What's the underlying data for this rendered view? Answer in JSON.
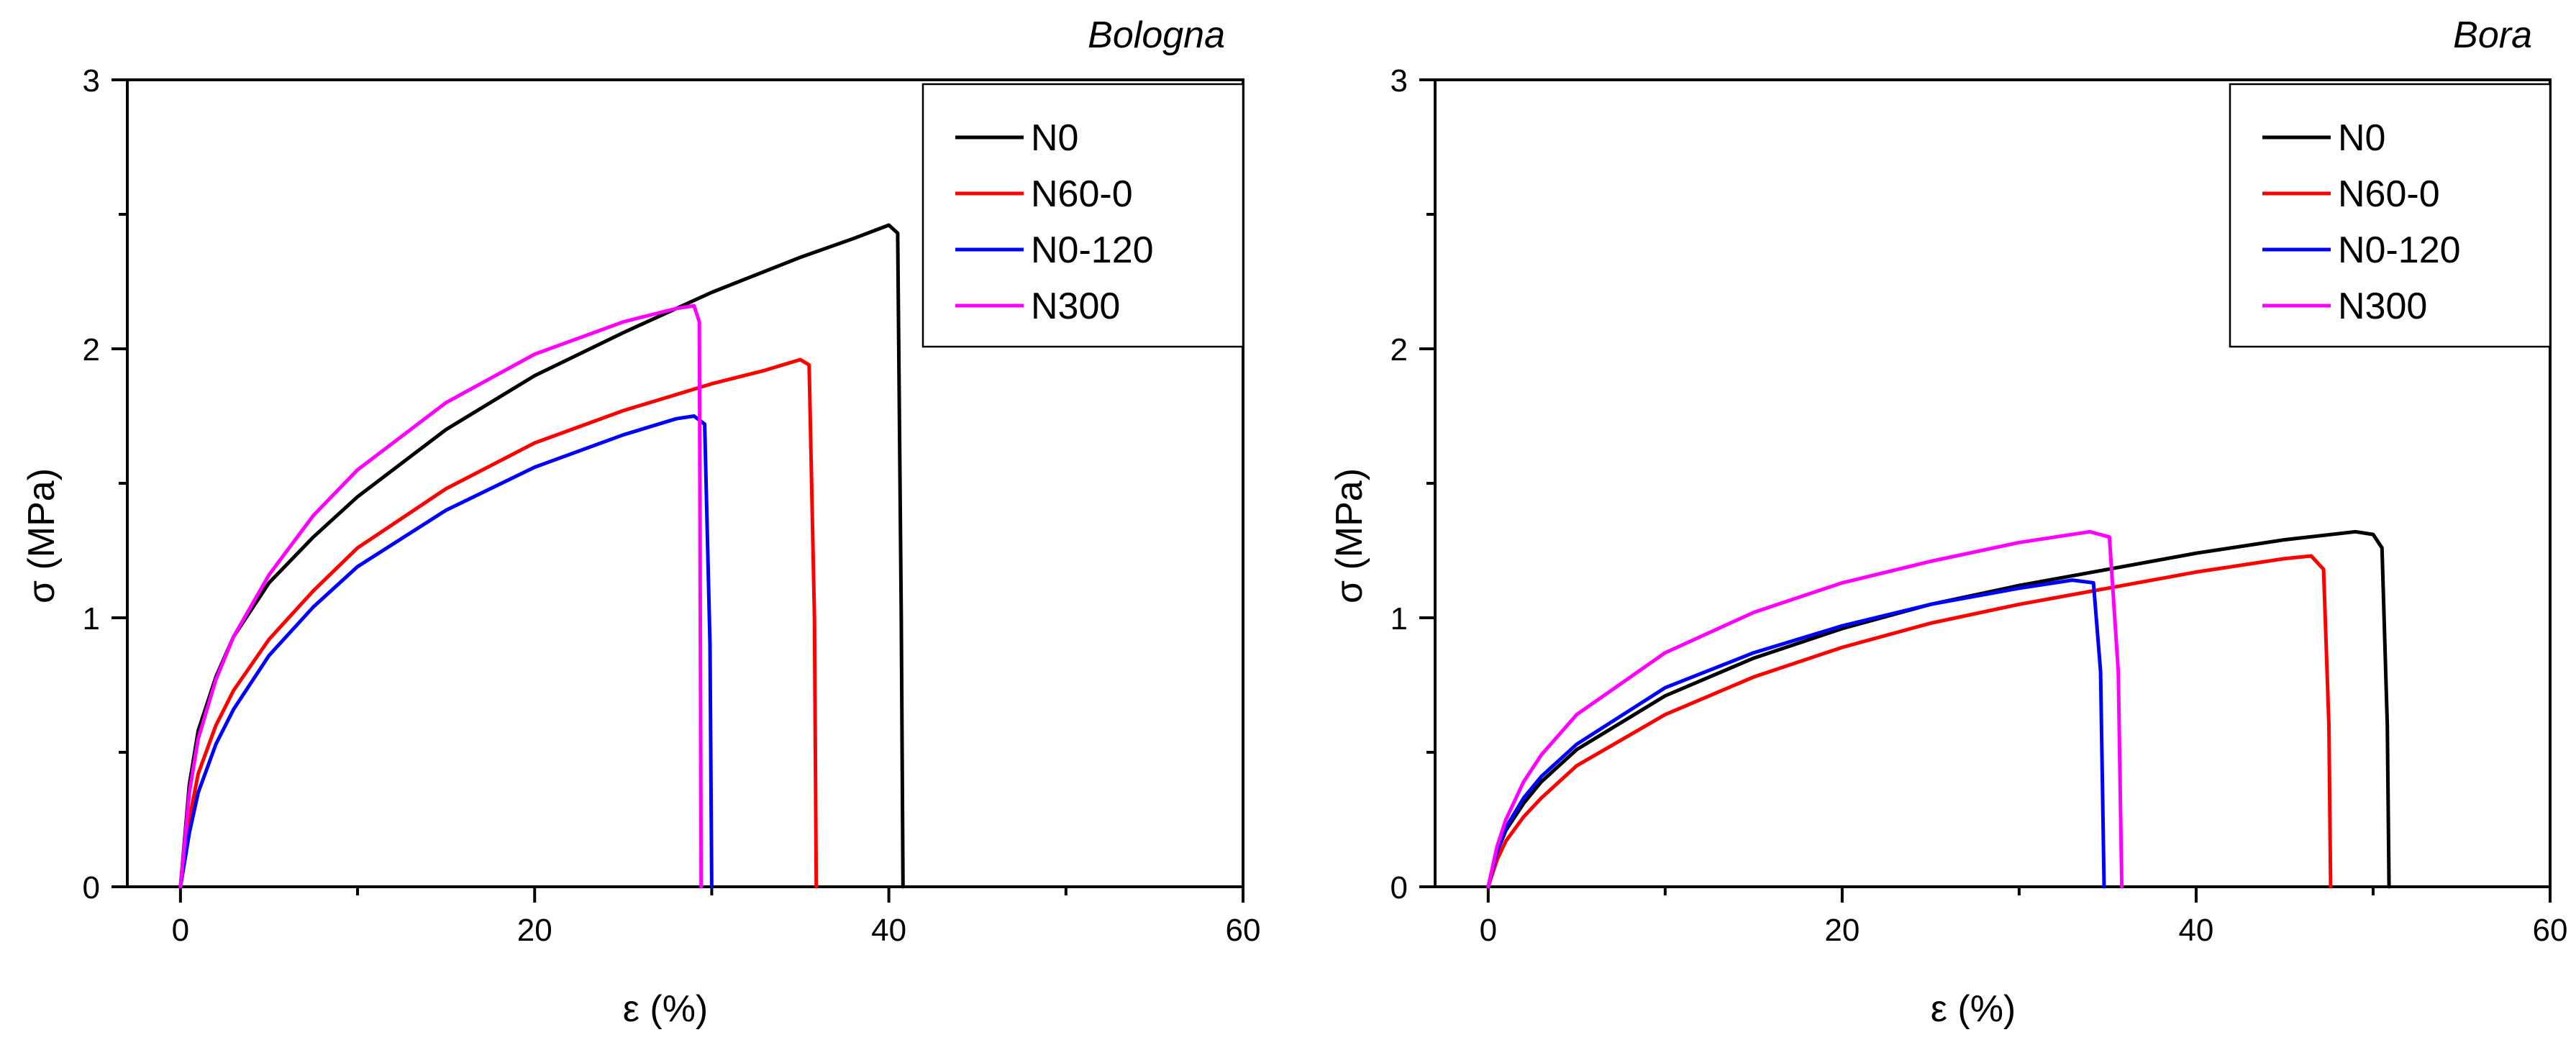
{
  "chart_data": [
    {
      "type": "line",
      "title": "Bologna",
      "xlabel": "ε (%)",
      "ylabel": "σ (MPa)",
      "xlim": [
        -3,
        60
      ],
      "ylim": [
        0,
        3
      ],
      "xticks": [
        0,
        20,
        40,
        60
      ],
      "yticks": [
        0,
        1,
        2,
        3
      ],
      "xtick_labels": [
        "0",
        "20",
        "40",
        "60"
      ],
      "ytick_labels": [
        "0",
        "1",
        "2",
        "3"
      ],
      "legend": "top-right",
      "series": [
        {
          "name": "N0",
          "color": "#000000",
          "x": [
            0,
            0.5,
            1,
            2,
            3,
            5,
            7.5,
            10,
            15,
            20,
            25,
            30,
            35,
            38,
            40,
            40.5,
            40.7,
            40.8
          ],
          "y": [
            0,
            0.38,
            0.58,
            0.78,
            0.93,
            1.13,
            1.3,
            1.45,
            1.7,
            1.9,
            2.06,
            2.21,
            2.34,
            2.41,
            2.46,
            2.43,
            1.0,
            0
          ]
        },
        {
          "name": "N60-0",
          "color": "#ff0000",
          "x": [
            0,
            0.5,
            1,
            2,
            3,
            5,
            7.5,
            10,
            15,
            20,
            25,
            30,
            33,
            35,
            35.5,
            35.8,
            35.9
          ],
          "y": [
            0,
            0.25,
            0.42,
            0.6,
            0.73,
            0.92,
            1.1,
            1.26,
            1.48,
            1.65,
            1.77,
            1.87,
            1.92,
            1.96,
            1.94,
            1.0,
            0
          ]
        },
        {
          "name": "N0-120",
          "color": "#0000ff",
          "x": [
            0,
            0.5,
            1,
            2,
            3,
            5,
            7.5,
            10,
            15,
            20,
            25,
            28,
            29,
            29.6,
            29.9,
            30.0
          ],
          "y": [
            0,
            0.2,
            0.35,
            0.53,
            0.66,
            0.86,
            1.04,
            1.19,
            1.4,
            1.56,
            1.68,
            1.74,
            1.75,
            1.72,
            0.9,
            0
          ]
        },
        {
          "name": "N300",
          "color": "#ff00ff",
          "x": [
            0,
            0.5,
            1,
            2,
            3,
            5,
            7.5,
            10,
            15,
            20,
            25,
            28,
            29,
            29.3,
            29.4
          ],
          "y": [
            0,
            0.35,
            0.55,
            0.77,
            0.93,
            1.16,
            1.38,
            1.55,
            1.8,
            1.98,
            2.1,
            2.15,
            2.16,
            2.1,
            0
          ]
        }
      ]
    },
    {
      "type": "line",
      "title": "Bora",
      "xlabel": "ε (%)",
      "ylabel": "σ (MPa)",
      "xlim": [
        -3,
        60
      ],
      "ylim": [
        0,
        3
      ],
      "xticks": [
        0,
        20,
        40,
        60
      ],
      "yticks": [
        0,
        1,
        2,
        3
      ],
      "xtick_labels": [
        "0",
        "20",
        "40",
        "60"
      ],
      "ytick_labels": [
        "0",
        "1",
        "2",
        "3"
      ],
      "legend": "top-right",
      "series": [
        {
          "name": "N0",
          "color": "#000000",
          "x": [
            0,
            0.5,
            1,
            2,
            3,
            5,
            10,
            15,
            20,
            25,
            30,
            35,
            40,
            45,
            49,
            50,
            50.5,
            50.8,
            50.9
          ],
          "y": [
            0,
            0.13,
            0.21,
            0.31,
            0.39,
            0.51,
            0.71,
            0.85,
            0.96,
            1.05,
            1.12,
            1.18,
            1.24,
            1.29,
            1.32,
            1.31,
            1.26,
            0.6,
            0
          ]
        },
        {
          "name": "N60-0",
          "color": "#ff0000",
          "x": [
            0,
            0.5,
            1,
            2,
            3,
            5,
            10,
            15,
            20,
            25,
            30,
            35,
            40,
            45,
            46.5,
            47.2,
            47.5,
            47.6
          ],
          "y": [
            0,
            0.1,
            0.17,
            0.26,
            0.33,
            0.45,
            0.64,
            0.78,
            0.89,
            0.98,
            1.05,
            1.11,
            1.17,
            1.22,
            1.23,
            1.18,
            0.6,
            0
          ]
        },
        {
          "name": "N0-120",
          "color": "#0000ff",
          "x": [
            0,
            0.5,
            1,
            2,
            3,
            5,
            10,
            15,
            20,
            25,
            30,
            33,
            34.2,
            34.6,
            34.8
          ],
          "y": [
            0,
            0.13,
            0.22,
            0.33,
            0.41,
            0.53,
            0.74,
            0.87,
            0.97,
            1.05,
            1.11,
            1.14,
            1.13,
            0.8,
            0
          ]
        },
        {
          "name": "N300",
          "color": "#ff00ff",
          "x": [
            0,
            0.5,
            1,
            2,
            3,
            5,
            10,
            15,
            20,
            25,
            30,
            34,
            35.1,
            35.6,
            35.8
          ],
          "y": [
            0,
            0.15,
            0.25,
            0.39,
            0.49,
            0.64,
            0.87,
            1.02,
            1.13,
            1.21,
            1.28,
            1.32,
            1.3,
            0.8,
            0
          ]
        }
      ]
    }
  ]
}
